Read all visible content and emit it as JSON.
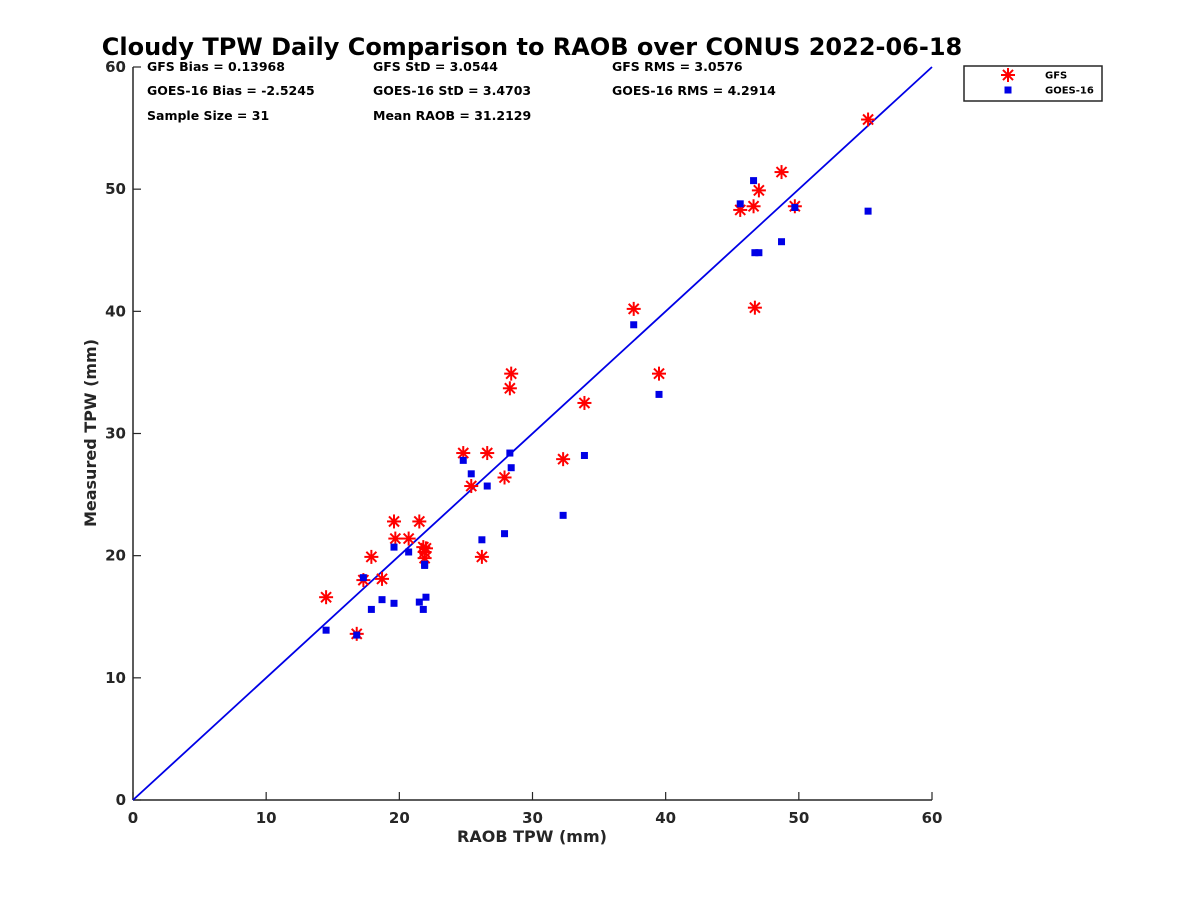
{
  "chart_data": {
    "type": "scatter",
    "title": "Cloudy TPW Daily Comparison to RAOB over CONUS 2022-06-18",
    "xlabel": "RAOB TPW (mm)",
    "ylabel": "Measured TPW (mm)",
    "xlim": [
      0,
      60
    ],
    "ylim": [
      0,
      60
    ],
    "xticks": [
      "0",
      "10",
      "20",
      "30",
      "40",
      "50",
      "60"
    ],
    "yticks": [
      "0",
      "10",
      "20",
      "30",
      "40",
      "50",
      "60"
    ],
    "grid": false,
    "legend_position": "top-right (outside)",
    "stats": [
      [
        "GFS Bias = 0.13968",
        "GFS StD = 3.0544",
        "GFS RMS = 3.0576"
      ],
      [
        "GOES-16 Bias = -2.5245",
        "GOES-16 StD = 3.4703",
        "GOES-16 RMS = 4.2914"
      ],
      [
        "Sample Size = 31",
        "Mean RAOB = 31.2129",
        ""
      ]
    ],
    "reference_line": {
      "x": [
        0,
        60
      ],
      "y": [
        0,
        60
      ],
      "color": "#0000e6"
    },
    "series": [
      {
        "name": "GFS",
        "marker": "asterisk",
        "color": "#ff0000",
        "x": [
          14.5,
          16.8,
          17.3,
          17.9,
          18.7,
          19.6,
          19.7,
          20.7,
          21.5,
          21.8,
          21.9,
          22.0,
          24.8,
          25.4,
          26.2,
          26.6,
          27.9,
          28.3,
          28.4,
          32.3,
          33.9,
          37.6,
          39.5,
          45.6,
          46.6,
          46.7,
          47.0,
          48.7,
          49.7,
          55.2,
          21.9
        ],
        "y": [
          16.6,
          13.6,
          18.0,
          19.9,
          18.1,
          22.8,
          21.4,
          21.4,
          22.8,
          20.7,
          19.8,
          20.6,
          28.4,
          25.7,
          19.9,
          28.4,
          26.4,
          33.7,
          34.9,
          27.9,
          32.5,
          40.2,
          34.9,
          48.3,
          48.6,
          40.3,
          49.9,
          51.4,
          48.6,
          55.7,
          20.3
        ]
      },
      {
        "name": "GOES-16",
        "marker": "square",
        "color": "#0000e6",
        "x": [
          14.5,
          16.8,
          17.3,
          17.9,
          18.7,
          19.6,
          20.7,
          21.5,
          21.8,
          21.9,
          22.0,
          24.8,
          25.4,
          26.2,
          26.6,
          27.9,
          28.3,
          28.4,
          32.3,
          33.9,
          37.6,
          39.5,
          45.6,
          46.6,
          46.7,
          47.0,
          48.7,
          49.7,
          55.2,
          21.9,
          19.6
        ],
        "y": [
          13.9,
          13.5,
          18.2,
          15.6,
          16.4,
          16.1,
          20.3,
          16.2,
          15.6,
          19.2,
          16.6,
          27.8,
          26.7,
          21.3,
          25.7,
          21.8,
          28.4,
          27.2,
          23.3,
          28.2,
          38.9,
          33.2,
          48.8,
          50.7,
          44.8,
          44.8,
          45.7,
          48.5,
          48.2,
          19.3,
          20.7
        ]
      }
    ]
  }
}
